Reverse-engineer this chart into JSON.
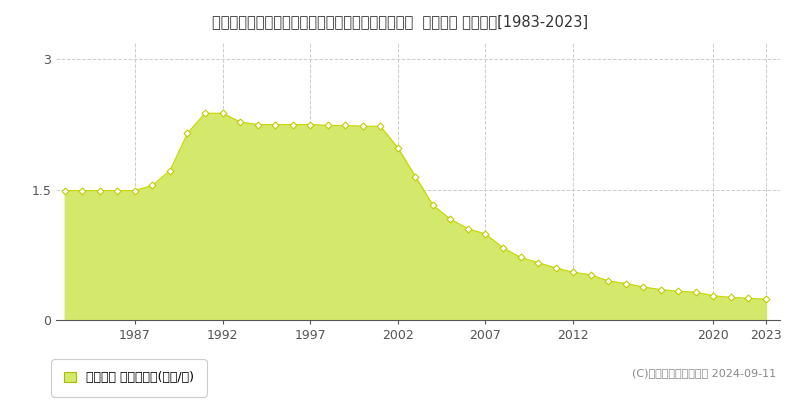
{
  "title": "兵庫県神戸市西区押部谷町細田字前田６４３番１８  地価公示 地価推移[1983-2023]",
  "years": [
    1983,
    1984,
    1985,
    1986,
    1987,
    1988,
    1989,
    1990,
    1991,
    1992,
    1993,
    1994,
    1995,
    1996,
    1997,
    1998,
    1999,
    2000,
    2001,
    2002,
    2003,
    2004,
    2005,
    2006,
    2007,
    2008,
    2009,
    2010,
    2011,
    2012,
    2013,
    2014,
    2015,
    2016,
    2017,
    2018,
    2019,
    2020,
    2021,
    2022,
    2023
  ],
  "values": [
    1.49,
    1.49,
    1.49,
    1.49,
    1.49,
    1.55,
    1.72,
    2.15,
    2.38,
    2.38,
    2.28,
    2.25,
    2.25,
    2.25,
    2.25,
    2.24,
    2.24,
    2.23,
    2.23,
    1.98,
    1.65,
    1.32,
    1.16,
    1.05,
    0.99,
    0.83,
    0.72,
    0.66,
    0.6,
    0.55,
    0.52,
    0.45,
    0.42,
    0.38,
    0.35,
    0.33,
    0.32,
    0.28,
    0.26,
    0.25,
    0.24
  ],
  "fill_color": "#d4e96b",
  "line_color": "#c8d800",
  "marker_color": "#ffffff",
  "marker_edge_color": "#c0cc00",
  "background_color": "#ffffff",
  "plot_bg_color": "#ffffff",
  "grid_color": "#cccccc",
  "yticks": [
    0,
    1.5,
    3
  ],
  "ylim": [
    0,
    3.2
  ],
  "xlim": [
    1982.5,
    2023.8
  ],
  "xtick_labels": [
    "1987",
    "1992",
    "1997",
    "2002",
    "2007",
    "2012",
    "2020",
    "2023"
  ],
  "xtick_positions": [
    1987,
    1992,
    1997,
    2002,
    2007,
    2012,
    2020,
    2023
  ],
  "legend_label": "地価公示 平均坪単価(万円/坪)",
  "copyright": "(C)土地価格ドットコム 2024-09-11",
  "title_fontsize": 10.5,
  "axis_fontsize": 9,
  "legend_fontsize": 9
}
